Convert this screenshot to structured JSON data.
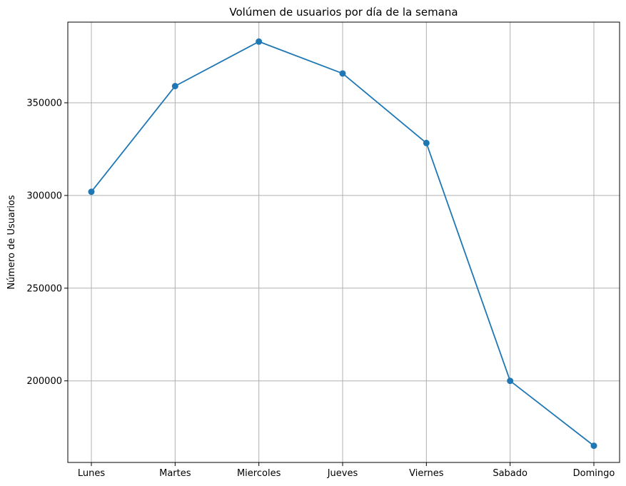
{
  "chart_data": {
    "type": "line",
    "title": "Volúmen de usuarios por día de la semana",
    "xlabel": "",
    "ylabel": "Número de Usuarios",
    "categories": [
      "Lunes",
      "Martes",
      "Miercoles",
      "Jueves",
      "Viernes",
      "Sabado",
      "Domingo"
    ],
    "series": [
      {
        "values": [
          302000,
          359000,
          383000,
          365800,
          328300,
          200000,
          165000
        ]
      }
    ],
    "ylim": [
      156000,
      393500
    ],
    "yticks": [
      200000,
      250000,
      300000,
      350000
    ],
    "ytick_labels": [
      "200000",
      "250000",
      "300000",
      "350000"
    ],
    "grid": true,
    "marker": "circle",
    "colors": {
      "line": "#1f77b4",
      "grid": "#b0b0b0",
      "axes": "#000000"
    }
  }
}
